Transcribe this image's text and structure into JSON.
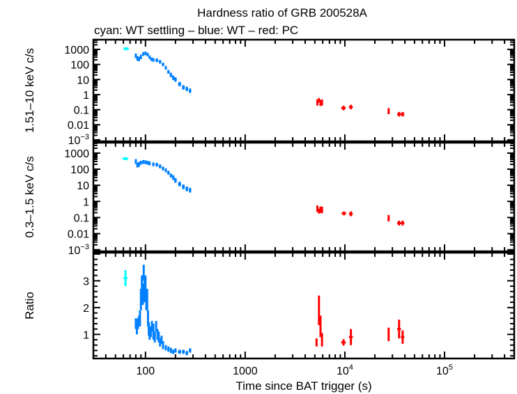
{
  "chart_data": {
    "type": "scatter",
    "title": "Hardness ratio of GRB 200528A",
    "subtitle": "cyan: WT settling – blue: WT – red: PC",
    "xlabel": "Time since BAT trigger (s)",
    "xscale": "log",
    "xlim": [
      30,
      500000
    ],
    "xticks": [
      {
        "v": 100,
        "label": "100"
      },
      {
        "v": 1000,
        "label": "1000"
      },
      {
        "v": 10000,
        "label": "10",
        "sup": "4"
      },
      {
        "v": 100000,
        "label": "10",
        "sup": "5"
      }
    ],
    "colors": {
      "wt_settling": "#00ffff",
      "wt": "#0080ff",
      "pc": "#ff0000"
    },
    "panels": [
      {
        "ylabel": "1.51–10 keV c/s",
        "yscale": "log",
        "ylim": [
          0.0008,
          4400
        ],
        "yticks": [
          {
            "v": 1000,
            "label": "1000"
          },
          {
            "v": 100,
            "label": "100"
          },
          {
            "v": 10,
            "label": "10"
          },
          {
            "v": 1,
            "label": "1"
          },
          {
            "v": 0.1,
            "label": "0.1"
          },
          {
            "v": 0.01,
            "label": "0.01"
          },
          {
            "v": 0.001,
            "label": "10",
            "sup": "−3"
          }
        ],
        "series": [
          {
            "key": "wt_settling",
            "x": [
              64
            ],
            "y": [
              1100
            ],
            "xerr": [
              4
            ],
            "yerr": [
              0.1
            ]
          },
          {
            "key": "wt",
            "x": [
              80,
              83,
              86,
              90,
              95,
              100,
              105,
              110,
              115,
              120,
              130,
              140,
              150,
              160,
              170,
              180,
              190,
              200,
              220,
              240,
              260,
              280
            ],
            "y": [
              380,
              250,
              230,
              320,
              500,
              550,
              450,
              300,
              220,
              200,
              190,
              150,
              100,
              60,
              32,
              20,
              13,
              10,
              5,
              3,
              2.4,
              1.8
            ],
            "xerr": [
              1,
              1,
              1,
              1,
              2,
              2,
              2,
              2,
              2,
              3,
              4,
              4,
              4,
              4,
              5,
              5,
              5,
              6,
              8,
              8,
              8,
              8
            ],
            "yerr": [
              0.15,
              0.15,
              0.15,
              0.15,
              0.12,
              0.12,
              0.12,
              0.12,
              0.12,
              0.12,
              0.12,
              0.12,
              0.12,
              0.12,
              0.12,
              0.15,
              0.15,
              0.15,
              0.15,
              0.15,
              0.15,
              0.15
            ]
          },
          {
            "key": "pc",
            "x": [
              5300,
              5500,
              5700,
              5900,
              9700,
              11500,
              27500,
              35000,
              38000
            ],
            "y": [
              0.3,
              0.42,
              0.28,
              0.3,
              0.13,
              0.15,
              0.08,
              0.05,
              0.05
            ],
            "xerr": [
              100,
              100,
              100,
              100,
              500,
              500,
              600,
              1500,
              1500
            ],
            "yerr": [
              0.2,
              0.15,
              0.2,
              0.2,
              0.15,
              0.15,
              0.2,
              0.15,
              0.15
            ]
          }
        ]
      },
      {
        "ylabel": "0.3–1.5 keV c/s",
        "yscale": "log",
        "ylim": [
          0.0008,
          4400
        ],
        "yticks": [
          {
            "v": 1000,
            "label": "1000"
          },
          {
            "v": 100,
            "label": "100"
          },
          {
            "v": 10,
            "label": "10"
          },
          {
            "v": 1,
            "label": "1"
          },
          {
            "v": 0.1,
            "label": "0.1"
          },
          {
            "v": 0.01,
            "label": "0.01"
          },
          {
            "v": 0.001,
            "label": "10",
            "sup": "−3"
          }
        ],
        "series": [
          {
            "key": "wt_settling",
            "x": [
              63
            ],
            "y": [
              450
            ],
            "xerr": [
              4
            ],
            "yerr": [
              0.1
            ]
          },
          {
            "key": "wt",
            "x": [
              80,
              83,
              86,
              90,
              95,
              100,
              105,
              110,
              120,
              130,
              140,
              150,
              160,
              170,
              180,
              190,
              200,
              220,
              240,
              260,
              280
            ],
            "y": [
              300,
              180,
              200,
              250,
              280,
              270,
              250,
              230,
              200,
              190,
              150,
              110,
              85,
              60,
              40,
              30,
              20,
              12,
              8,
              6,
              5
            ],
            "xerr": [
              1,
              1,
              1,
              1,
              2,
              2,
              2,
              2,
              3,
              4,
              4,
              4,
              4,
              5,
              5,
              5,
              6,
              8,
              8,
              8,
              8
            ],
            "yerr": [
              0.15,
              0.15,
              0.15,
              0.12,
              0.12,
              0.12,
              0.12,
              0.12,
              0.12,
              0.12,
              0.12,
              0.12,
              0.12,
              0.12,
              0.12,
              0.15,
              0.15,
              0.15,
              0.15,
              0.15,
              0.15
            ]
          },
          {
            "key": "pc",
            "x": [
              5300,
              5500,
              5700,
              5900,
              9800,
              11500,
              27500,
              35000,
              38000
            ],
            "y": [
              0.35,
              0.25,
              0.3,
              0.3,
              0.18,
              0.17,
              0.09,
              0.045,
              0.045
            ],
            "xerr": [
              100,
              100,
              100,
              100,
              500,
              500,
              600,
              1500,
              1500
            ],
            "yerr": [
              0.2,
              0.15,
              0.2,
              0.2,
              0.12,
              0.15,
              0.2,
              0.15,
              0.15
            ]
          }
        ]
      },
      {
        "ylabel": "Ratio",
        "yscale": "linear",
        "ylim": [
          0.1,
          4.05
        ],
        "yticks": [
          {
            "v": 1,
            "label": "1"
          },
          {
            "v": 2,
            "label": "2"
          },
          {
            "v": 3,
            "label": "3"
          }
        ],
        "series": [
          {
            "key": "wt_settling",
            "x": [
              63
            ],
            "y": [
              3.1
            ],
            "xerr": [
              3
            ],
            "yerr": [
              0.3
            ]
          },
          {
            "key": "wt",
            "x": [
              80,
              82,
              84,
              86,
              88,
              90,
              92,
              94,
              96,
              98,
              100,
              102,
              104,
              106,
              108,
              110,
              113,
              116,
              120,
              124,
              128,
              132,
              136,
              140,
              145,
              150,
              160,
              170,
              180,
              190,
              200,
              220,
              240,
              260,
              280
            ],
            "y": [
              1.4,
              1.2,
              1.4,
              1.5,
              1.6,
              2.3,
              2.8,
              2.5,
              3.3,
              2.6,
              2.8,
              2.3,
              2.3,
              1.6,
              1.2,
              1.0,
              1.1,
              1.3,
              1.1,
              0.9,
              1.3,
              1.0,
              0.9,
              0.7,
              0.8,
              0.6,
              0.5,
              0.45,
              0.4,
              0.35,
              0.4,
              0.35,
              0.35,
              0.3,
              0.4
            ],
            "xerr": [
              1,
              1,
              1,
              1,
              1,
              1,
              1,
              1,
              1,
              1,
              1,
              1,
              1,
              1,
              1,
              1,
              1.5,
              1.5,
              2,
              2,
              2,
              2,
              2,
              2,
              2.5,
              2.5,
              4,
              4,
              4,
              5,
              5,
              8,
              8,
              8,
              8
            ],
            "yerr": [
              0.2,
              0.2,
              0.2,
              0.2,
              0.3,
              0.4,
              0.4,
              0.4,
              0.3,
              0.4,
              0.4,
              0.4,
              0.4,
              0.3,
              0.25,
              0.2,
              0.2,
              0.2,
              0.3,
              0.2,
              0.2,
              0.2,
              0.2,
              0.15,
              0.15,
              0.15,
              0.1,
              0.1,
              0.1,
              0.08,
              0.08,
              0.08,
              0.08,
              0.08,
              0.08
            ]
          },
          {
            "key": "pc",
            "x": [
              5200,
              5500,
              5700,
              5900,
              9700,
              11500,
              27500,
              35000,
              38000
            ],
            "y": [
              0.7,
              1.9,
              1.3,
              0.8,
              0.7,
              0.9,
              1.0,
              1.2,
              0.9
            ],
            "xerr": [
              100,
              100,
              100,
              100,
              500,
              500,
              600,
              1500,
              1500
            ],
            "yerr": [
              0.15,
              0.55,
              0.4,
              0.25,
              0.12,
              0.3,
              0.25,
              0.35,
              0.25
            ]
          }
        ]
      }
    ]
  }
}
